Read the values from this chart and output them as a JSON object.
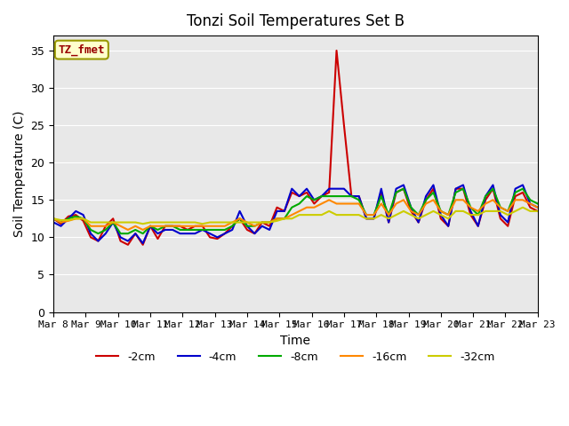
{
  "title": "Tonzi Soil Temperatures Set B",
  "xlabel": "Time",
  "ylabel": "Soil Temperature (C)",
  "annotation": "TZ_fmet",
  "ylim": [
    0,
    37
  ],
  "yticks": [
    0,
    5,
    10,
    15,
    20,
    25,
    30,
    35
  ],
  "x_labels": [
    "Mar 8",
    "Mar 9",
    "Mar 10",
    "Mar 11",
    "Mar 12",
    "Mar 13",
    "Mar 14",
    "Mar 15",
    "Mar 16",
    "Mar 17",
    "Mar 18",
    "Mar 19",
    "Mar 20",
    "Mar 21",
    "Mar 22",
    "Mar 23"
  ],
  "series": {
    "-2cm": {
      "color": "#cc0000",
      "lw": 1.5
    },
    "-4cm": {
      "color": "#0000cc",
      "lw": 1.5
    },
    "-8cm": {
      "color": "#00aa00",
      "lw": 1.5
    },
    "-16cm": {
      "color": "#ff8800",
      "lw": 1.5
    },
    "-32cm": {
      "color": "#cccc00",
      "lw": 1.5
    }
  },
  "data": {
    "-2cm": [
      12.5,
      11.8,
      12.8,
      13.0,
      12.2,
      10.0,
      9.5,
      11.5,
      12.5,
      9.5,
      9.0,
      10.5,
      9.0,
      11.5,
      9.8,
      11.5,
      11.5,
      11.5,
      11.0,
      11.5,
      11.5,
      10.0,
      9.8,
      10.5,
      11.5,
      12.5,
      11.0,
      10.5,
      12.0,
      11.5,
      14.0,
      13.5,
      16.0,
      15.5,
      16.0,
      14.5,
      15.5,
      16.0,
      35.0,
      25.0,
      15.5,
      15.5,
      12.5,
      12.5,
      16.0,
      12.0,
      16.0,
      16.5,
      13.5,
      12.0,
      15.0,
      16.5,
      12.5,
      11.5,
      16.5,
      16.5,
      13.0,
      11.5,
      15.0,
      16.5,
      12.5,
      11.5,
      15.5,
      16.0,
      14.0,
      13.5
    ],
    "-4cm": [
      12.0,
      11.5,
      12.5,
      13.5,
      13.0,
      10.5,
      9.5,
      10.5,
      12.0,
      10.0,
      9.5,
      10.5,
      9.2,
      11.5,
      10.5,
      11.0,
      11.0,
      10.5,
      10.5,
      10.5,
      11.0,
      10.5,
      10.0,
      10.5,
      11.0,
      13.5,
      11.5,
      10.5,
      11.5,
      11.0,
      13.5,
      13.5,
      16.5,
      15.5,
      16.5,
      15.0,
      15.5,
      16.5,
      16.5,
      16.5,
      15.5,
      15.5,
      12.5,
      12.5,
      16.5,
      12.0,
      16.5,
      17.0,
      14.0,
      12.0,
      15.5,
      17.0,
      13.0,
      11.5,
      16.5,
      17.0,
      13.5,
      11.5,
      15.5,
      17.0,
      13.0,
      12.0,
      16.5,
      17.0,
      14.5,
      14.0
    ],
    "-8cm": [
      12.5,
      12.0,
      12.5,
      12.8,
      12.5,
      11.0,
      10.5,
      11.0,
      12.0,
      10.5,
      10.5,
      11.0,
      10.5,
      11.5,
      11.0,
      11.5,
      11.5,
      11.0,
      11.0,
      11.0,
      11.0,
      11.0,
      11.0,
      11.0,
      11.5,
      12.5,
      11.5,
      11.5,
      12.0,
      12.0,
      12.5,
      12.5,
      14.0,
      14.5,
      15.5,
      15.0,
      15.5,
      15.5,
      15.5,
      15.5,
      15.5,
      15.0,
      13.0,
      13.0,
      15.5,
      13.0,
      16.0,
      16.5,
      14.0,
      13.0,
      15.0,
      16.0,
      13.5,
      13.0,
      16.0,
      16.5,
      14.0,
      13.0,
      15.5,
      16.5,
      14.0,
      13.5,
      16.0,
      16.5,
      15.0,
      14.5
    ],
    "-16cm": [
      12.5,
      12.0,
      12.2,
      12.5,
      12.5,
      11.5,
      11.5,
      11.5,
      12.0,
      11.5,
      11.0,
      11.5,
      11.0,
      11.5,
      11.5,
      11.5,
      11.5,
      11.5,
      11.5,
      11.5,
      11.5,
      11.5,
      11.5,
      11.5,
      12.0,
      12.5,
      12.0,
      11.5,
      12.0,
      12.0,
      12.5,
      12.5,
      13.0,
      13.5,
      14.0,
      14.0,
      14.5,
      15.0,
      14.5,
      14.5,
      14.5,
      14.5,
      13.0,
      13.0,
      14.5,
      13.0,
      14.5,
      15.0,
      13.5,
      13.0,
      14.5,
      15.0,
      13.5,
      13.0,
      15.0,
      15.0,
      14.0,
      13.5,
      14.5,
      15.0,
      14.0,
      13.5,
      15.0,
      15.0,
      14.5,
      14.0
    ],
    "-32cm": [
      12.5,
      12.3,
      12.3,
      12.5,
      12.5,
      12.0,
      12.0,
      12.0,
      12.0,
      12.0,
      12.0,
      12.0,
      11.8,
      12.0,
      12.0,
      12.0,
      12.0,
      12.0,
      12.0,
      12.0,
      11.8,
      12.0,
      12.0,
      12.0,
      12.0,
      12.0,
      12.0,
      12.0,
      12.0,
      12.0,
      12.2,
      12.5,
      12.5,
      13.0,
      13.0,
      13.0,
      13.0,
      13.5,
      13.0,
      13.0,
      13.0,
      13.0,
      12.5,
      12.5,
      13.0,
      12.5,
      13.0,
      13.5,
      13.0,
      12.5,
      13.0,
      13.5,
      13.0,
      12.5,
      13.5,
      13.5,
      13.0,
      13.0,
      13.5,
      13.5,
      13.5,
      13.0,
      13.5,
      14.0,
      13.5,
      13.5
    ]
  },
  "bg_color": "#e8e8e8",
  "fig_bg": "#ffffff",
  "grid_color": "#ffffff",
  "n_points": 66
}
